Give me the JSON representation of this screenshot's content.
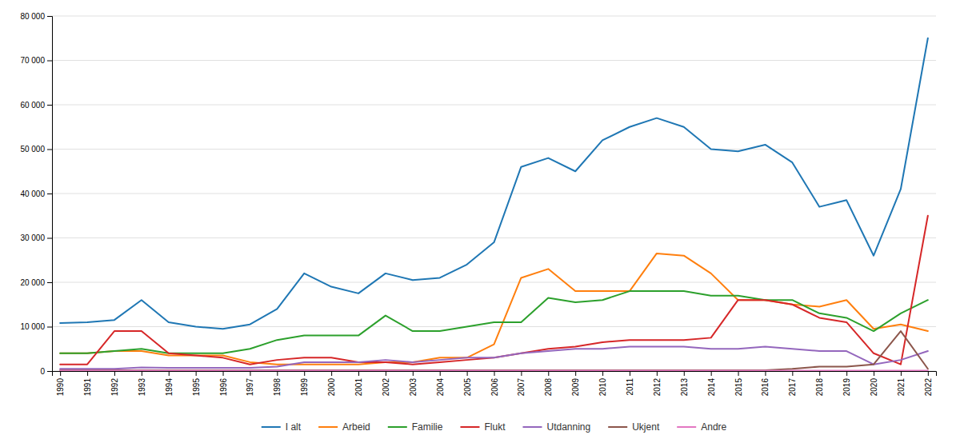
{
  "chart_data": {
    "type": "line",
    "x": [
      1990,
      1991,
      1992,
      1993,
      1994,
      1995,
      1996,
      1997,
      1998,
      1999,
      2000,
      2001,
      2002,
      2003,
      2004,
      2005,
      2006,
      2007,
      2008,
      2009,
      2010,
      2011,
      2012,
      2013,
      2014,
      2015,
      2016,
      2017,
      2018,
      2019,
      2020,
      2021,
      2022
    ],
    "series": [
      {
        "name": "I alt",
        "values": [
          10800,
          11000,
          11500,
          16000,
          11000,
          10000,
          9500,
          10500,
          14000,
          22000,
          19000,
          17500,
          22000,
          20500,
          21000,
          24000,
          29000,
          46000,
          48000,
          45000,
          52000,
          55000,
          57000,
          55000,
          50000,
          49500,
          51000,
          47000,
          37000,
          38500,
          26000,
          41000,
          75000
        ]
      },
      {
        "name": "Arbeid",
        "values": [
          4000,
          4000,
          4500,
          4500,
          3500,
          3500,
          3500,
          2000,
          1500,
          1500,
          1500,
          1500,
          2000,
          2000,
          3000,
          3000,
          6000,
          21000,
          23000,
          18000,
          18000,
          18000,
          26500,
          26000,
          22000,
          16000,
          16000,
          15000,
          14500,
          16000,
          9500,
          10500,
          9000
        ]
      },
      {
        "name": "Familie",
        "values": [
          4000,
          4000,
          4500,
          5000,
          4000,
          4000,
          4000,
          5000,
          7000,
          8000,
          8000,
          8000,
          12500,
          9000,
          9000,
          10000,
          11000,
          11000,
          16500,
          15500,
          16000,
          18000,
          18000,
          18000,
          17000,
          17000,
          16000,
          16000,
          13000,
          12000,
          9000,
          13000,
          16000
        ]
      },
      {
        "name": "Flukt",
        "values": [
          1500,
          1500,
          9000,
          9000,
          4000,
          3500,
          3000,
          1500,
          2500,
          3000,
          3000,
          2000,
          2000,
          1500,
          2000,
          2500,
          3000,
          4000,
          5000,
          5500,
          6500,
          7000,
          7000,
          7000,
          7500,
          16000,
          16000,
          15000,
          12000,
          11000,
          4000,
          1500,
          35000
        ]
      },
      {
        "name": "Utdanning",
        "values": [
          500,
          500,
          500,
          800,
          700,
          700,
          700,
          700,
          1000,
          2000,
          2000,
          2000,
          2500,
          2000,
          2500,
          3000,
          3000,
          4000,
          4500,
          5000,
          5000,
          5500,
          5500,
          5500,
          5000,
          5000,
          5500,
          5000,
          4500,
          4500,
          1500,
          2500,
          4500
        ]
      },
      {
        "name": "Ukjent",
        "values": [
          200,
          200,
          200,
          200,
          200,
          200,
          200,
          200,
          200,
          200,
          200,
          200,
          200,
          200,
          200,
          200,
          200,
          200,
          200,
          200,
          200,
          200,
          200,
          200,
          200,
          200,
          200,
          500,
          1000,
          1000,
          1500,
          9000,
          500
        ]
      },
      {
        "name": "Andre",
        "values": [
          100,
          100,
          100,
          100,
          100,
          100,
          100,
          100,
          100,
          100,
          100,
          100,
          100,
          100,
          100,
          100,
          100,
          100,
          100,
          100,
          100,
          100,
          100,
          100,
          100,
          100,
          100,
          100,
          100,
          100,
          100,
          100,
          100
        ]
      }
    ],
    "xlim": [
      1989.7,
      2022.3
    ],
    "xticks": [
      1990,
      1991,
      1992,
      1993,
      1994,
      1995,
      1996,
      1997,
      1998,
      1999,
      2000,
      2001,
      2002,
      2003,
      2004,
      2005,
      2006,
      2007,
      2008,
      2009,
      2010,
      2011,
      2012,
      2013,
      2014,
      2015,
      2016,
      2017,
      2018,
      2019,
      2020,
      2021,
      2022
    ],
    "ylim": [
      0,
      80000
    ],
    "yticks": [
      0,
      {
        "value": 10000,
        "label": "10 000"
      },
      {
        "value": 20000,
        "label": "20 000"
      },
      {
        "value": 30000,
        "label": "30 000"
      },
      {
        "value": 40000,
        "label": "40 000"
      },
      {
        "value": 50000,
        "label": "50 000"
      },
      {
        "value": 60000,
        "label": "60 000"
      },
      {
        "value": 70000,
        "label": "70 000"
      },
      {
        "value": 80000,
        "label": "80 000"
      }
    ],
    "grid": true,
    "legend": "bottom"
  }
}
